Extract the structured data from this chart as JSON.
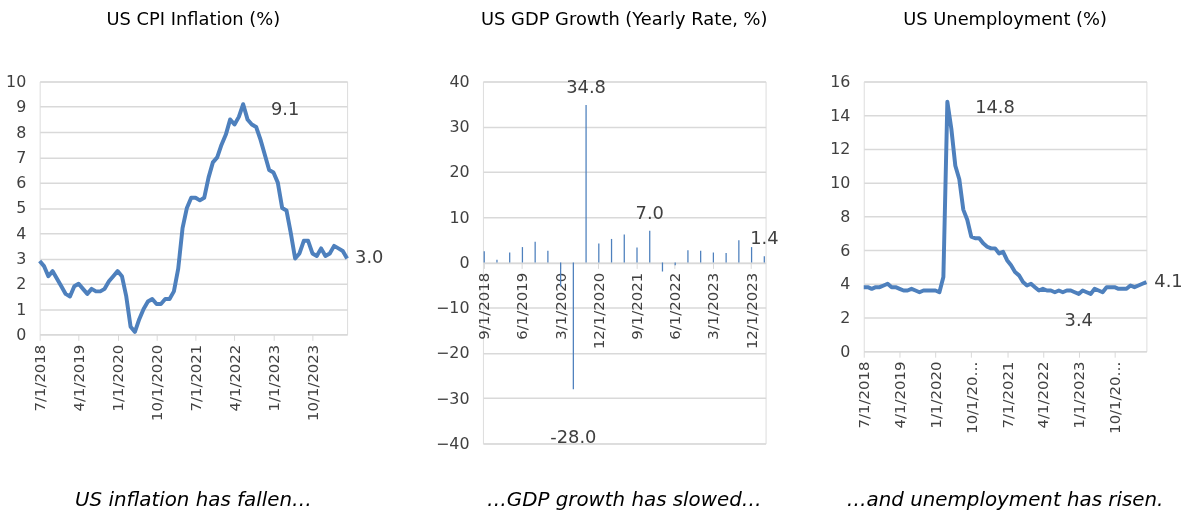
{
  "chart_data": [
    {
      "type": "line",
      "title": "US CPI Inflation (%)",
      "annotations": [
        "US inflation has fallen…"
      ],
      "color": "#4e80bd",
      "grid": "y",
      "ylim": [
        0,
        10
      ],
      "yticks": [
        0,
        1,
        2,
        3,
        4,
        5,
        6,
        7,
        8,
        9,
        10
      ],
      "categories": [
        "7/1/2018",
        null,
        null,
        null,
        null,
        null,
        null,
        null,
        null,
        "4/1/2019",
        null,
        null,
        null,
        null,
        null,
        null,
        null,
        null,
        "1/1/2020",
        null,
        null,
        null,
        null,
        null,
        null,
        null,
        null,
        "10/1/2020",
        null,
        null,
        null,
        null,
        null,
        null,
        null,
        null,
        "7/1/2021",
        null,
        null,
        null,
        null,
        null,
        null,
        null,
        null,
        "4/1/2022",
        null,
        null,
        null,
        null,
        null,
        null,
        null,
        null,
        "1/1/2023",
        null,
        null,
        null,
        null,
        null,
        null,
        null,
        null,
        "10/1/2023",
        null,
        null,
        null,
        null,
        null,
        null,
        null,
        null
      ],
      "values": [
        2.9,
        2.7,
        2.3,
        2.5,
        2.2,
        1.9,
        1.6,
        1.5,
        1.9,
        2.0,
        1.8,
        1.6,
        1.8,
        1.7,
        1.7,
        1.8,
        2.1,
        2.3,
        2.5,
        2.3,
        1.5,
        0.3,
        0.1,
        0.6,
        1.0,
        1.3,
        1.4,
        1.2,
        1.2,
        1.4,
        1.4,
        1.7,
        2.6,
        4.2,
        5.0,
        5.4,
        5.4,
        5.3,
        5.4,
        6.2,
        6.8,
        7.0,
        7.5,
        7.9,
        8.5,
        8.3,
        8.6,
        9.1,
        8.5,
        8.3,
        8.2,
        7.7,
        7.1,
        6.5,
        6.4,
        6.0,
        5.0,
        4.9,
        4.0,
        3.0,
        3.2,
        3.7,
        3.7,
        3.2,
        3.1,
        3.4,
        3.1,
        3.2,
        3.5,
        3.4,
        3.3,
        3.0
      ],
      "value_labels": [
        null,
        null,
        null,
        null,
        null,
        null,
        null,
        null,
        null,
        null,
        null,
        null,
        null,
        null,
        null,
        null,
        null,
        null,
        null,
        null,
        null,
        null,
        null,
        null,
        null,
        null,
        null,
        null,
        null,
        null,
        null,
        null,
        null,
        null,
        null,
        null,
        null,
        null,
        null,
        null,
        null,
        null,
        null,
        null,
        null,
        null,
        null,
        "9.1",
        null,
        null,
        null,
        null,
        null,
        null,
        null,
        null,
        null,
        null,
        null,
        null,
        null,
        null,
        null,
        null,
        null,
        null,
        null,
        null,
        null,
        null,
        null,
        "3.0"
      ]
    },
    {
      "type": "bar",
      "title": "US GDP Growth (Yearly Rate, %)",
      "annotations": [
        "…GDP growth has slowed…"
      ],
      "color": "#4e80bd",
      "grid": "y",
      "ylim": [
        -40,
        40
      ],
      "yticks": [
        -40,
        -30,
        -20,
        -10,
        0,
        10,
        20,
        30,
        40
      ],
      "categories": [
        "9/1/2018",
        null,
        null,
        "6/1/2019",
        null,
        null,
        "3/1/2020",
        null,
        null,
        "12/1/2020",
        null,
        null,
        "9/1/2021",
        null,
        null,
        "6/1/2022",
        null,
        null,
        "3/1/2023",
        null,
        null,
        "12/1/2023",
        null
      ],
      "values": [
        2.5,
        0.6,
        2.2,
        3.4,
        4.6,
        2.6,
        -5.3,
        -28.0,
        34.8,
        4.2,
        5.2,
        6.2,
        3.3,
        7.0,
        -2.0,
        -0.6,
        2.7,
        2.6,
        2.2,
        2.1,
        4.9,
        3.4,
        1.4
      ],
      "value_labels": [
        null,
        null,
        null,
        null,
        null,
        null,
        null,
        "-28.0",
        "34.8",
        null,
        null,
        null,
        null,
        "7.0",
        null,
        null,
        null,
        null,
        null,
        null,
        null,
        null,
        "1.4"
      ]
    },
    {
      "type": "line",
      "title": "US Unemployment (%)",
      "annotations": [
        "…and unemployment has risen."
      ],
      "color": "#4e80bd",
      "grid": "y",
      "ylim": [
        0,
        16
      ],
      "yticks": [
        0,
        2,
        4,
        6,
        8,
        10,
        12,
        14,
        16
      ],
      "categories": [
        "7/1/2018",
        null,
        null,
        null,
        null,
        null,
        null,
        null,
        null,
        "4/1/2019",
        null,
        null,
        null,
        null,
        null,
        null,
        null,
        null,
        "1/1/2020",
        null,
        null,
        null,
        null,
        null,
        null,
        null,
        null,
        "10/1/20…",
        null,
        null,
        null,
        null,
        null,
        null,
        null,
        null,
        "7/1/2021",
        null,
        null,
        null,
        null,
        null,
        null,
        null,
        null,
        "4/1/2022",
        null,
        null,
        null,
        null,
        null,
        null,
        null,
        null,
        "1/1/2023",
        null,
        null,
        null,
        null,
        null,
        null,
        null,
        null,
        "10/1/20…",
        null,
        null,
        null,
        null,
        null,
        null,
        null,
        null
      ],
      "values": [
        3.8,
        3.8,
        3.7,
        3.8,
        3.8,
        3.9,
        4.0,
        3.8,
        3.8,
        3.7,
        3.6,
        3.6,
        3.7,
        3.6,
        3.5,
        3.6,
        3.6,
        3.6,
        3.6,
        3.5,
        4.4,
        14.8,
        13.2,
        11.0,
        10.2,
        8.4,
        7.8,
        6.8,
        6.7,
        6.7,
        6.4,
        6.2,
        6.1,
        6.1,
        5.8,
        5.9,
        5.4,
        5.1,
        4.7,
        4.5,
        4.1,
        3.9,
        4.0,
        3.8,
        3.6,
        3.7,
        3.6,
        3.6,
        3.5,
        3.6,
        3.5,
        3.6,
        3.6,
        3.5,
        3.4,
        3.6,
        3.5,
        3.4,
        3.7,
        3.6,
        3.5,
        3.8,
        3.8,
        3.8,
        3.7,
        3.7,
        3.7,
        3.9,
        3.8,
        3.9,
        4.0,
        4.1
      ],
      "value_labels": [
        null,
        null,
        null,
        null,
        null,
        null,
        null,
        null,
        null,
        null,
        null,
        null,
        null,
        null,
        null,
        null,
        null,
        null,
        null,
        null,
        null,
        "14.8",
        null,
        null,
        null,
        null,
        null,
        null,
        null,
        null,
        null,
        null,
        null,
        null,
        null,
        null,
        null,
        null,
        null,
        null,
        null,
        null,
        null,
        null,
        null,
        null,
        null,
        null,
        null,
        null,
        null,
        null,
        null,
        null,
        "3.4",
        null,
        null,
        null,
        null,
        null,
        null,
        null,
        null,
        null,
        null,
        null,
        null,
        null,
        null,
        null,
        null,
        "4.1"
      ]
    }
  ]
}
